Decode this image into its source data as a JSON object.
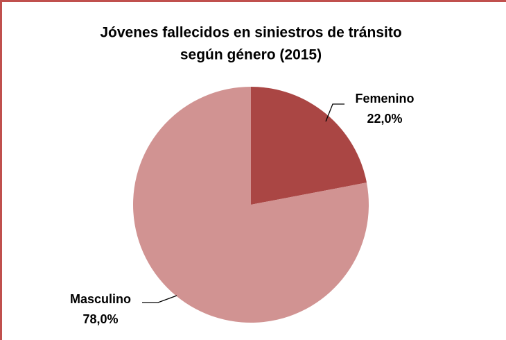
{
  "chart_data": {
    "type": "pie",
    "title": [
      "Jóvenes fallecidos en siniestros de tránsito",
      "según género (2015)"
    ],
    "categories": [
      "Femenino",
      "Masculino"
    ],
    "values": [
      22.0,
      78.0
    ],
    "value_labels": [
      "22,0%",
      "78,0%"
    ],
    "colors": [
      "#aa4644",
      "#d19392"
    ]
  }
}
